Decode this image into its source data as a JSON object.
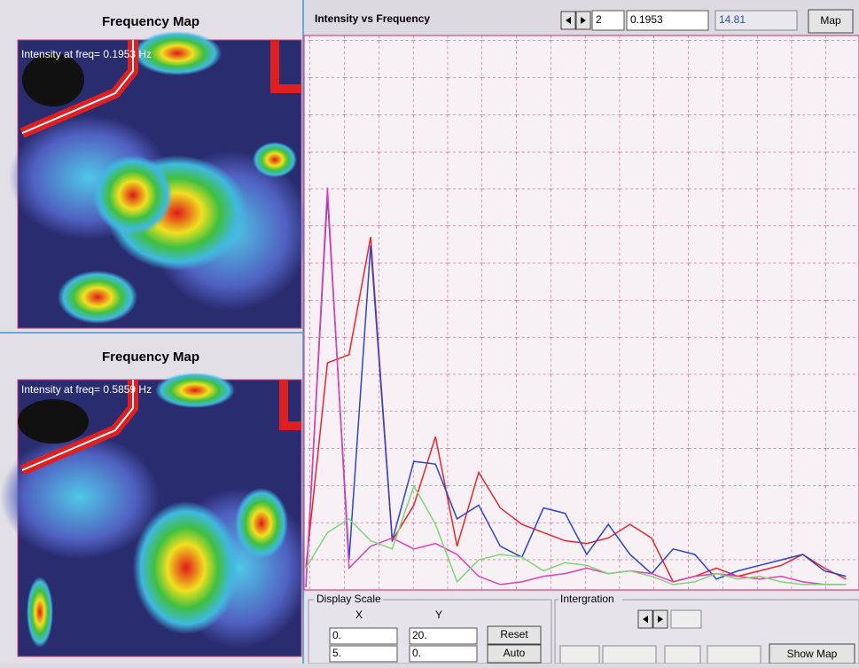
{
  "maps": [
    {
      "title": "Frequency Map",
      "caption": "Intensity at freq= 0.1953 Hz"
    },
    {
      "title": "Frequency Map",
      "caption": "Intensity at freq= 0.5859 Hz"
    }
  ],
  "toolbar": {
    "index": "2",
    "frequency": "0.1953",
    "intensity": "14.81",
    "map_button": "Map"
  },
  "chart_data": {
    "type": "line",
    "title": "Intensity vs Frequency",
    "x": [
      0,
      0.1953,
      0.3906,
      0.5859,
      0.7812,
      0.9765,
      1.1718,
      1.3671,
      1.5624,
      1.7577,
      1.953,
      2.1483,
      2.3436,
      2.5389,
      2.7342,
      2.9295,
      3.1248,
      3.3201,
      3.5154,
      3.7107,
      3.906,
      4.1013,
      4.2966,
      4.4919,
      4.6872,
      4.8825
    ],
    "xlim": [
      {
        "value": 0,
        "label": "0."
      },
      {
        "value": 5,
        "label": "5."
      }
    ],
    "ylim": [
      {
        "value": 0,
        "label": "0."
      },
      {
        "value": 20,
        "label": "20."
      }
    ],
    "series": [
      {
        "color": "#e8262a",
        "values": [
          0.7,
          8.2,
          8.5,
          12.8,
          1.7,
          3.0,
          5.5,
          1.5,
          4.2,
          2.9,
          2.3,
          2.0,
          1.7,
          1.6,
          1.8,
          2.3,
          1.8,
          0.2,
          0.4,
          0.7,
          0.4,
          0.6,
          0.8,
          1.2,
          0.7,
          0.3
        ]
      },
      {
        "color": "#2d45c8",
        "values": [
          0,
          14.3,
          1.0,
          12.5,
          1.7,
          4.6,
          4.5,
          2.5,
          3.0,
          1.5,
          1.1,
          2.9,
          2.7,
          1.2,
          2.3,
          1.2,
          0.5,
          1.4,
          1.2,
          0.3,
          0.6,
          0.8,
          1.0,
          1.2,
          0.6,
          0.4
        ]
      },
      {
        "color": "#e040b0",
        "values": [
          0,
          14.6,
          0.7,
          1.5,
          1.8,
          1.4,
          1.6,
          1.2,
          0.4,
          0.1,
          0.2,
          0.4,
          0.5,
          0.7,
          0.5,
          0.6,
          0.5,
          0.2,
          0.4,
          0.5,
          0.4,
          0.3,
          0.4,
          0.2,
          0.1,
          0.1
        ]
      },
      {
        "color": "#7fd67a",
        "values": [
          0.7,
          2.0,
          2.5,
          1.7,
          1.4,
          3.7,
          2.3,
          0.2,
          1.0,
          1.2,
          1.1,
          0.6,
          0.9,
          0.8,
          0.5,
          0.6,
          0.4,
          0.1,
          0.2,
          0.5,
          0.3,
          0.4,
          0.2,
          0.1,
          0.1,
          0.1
        ]
      }
    ]
  },
  "display_scale": {
    "title": "Display Scale",
    "x_label": "X",
    "y_label": "Y",
    "reset": "Reset",
    "auto": "Auto"
  },
  "integration": {
    "title": "Intergration",
    "show_map": "Show Map"
  }
}
